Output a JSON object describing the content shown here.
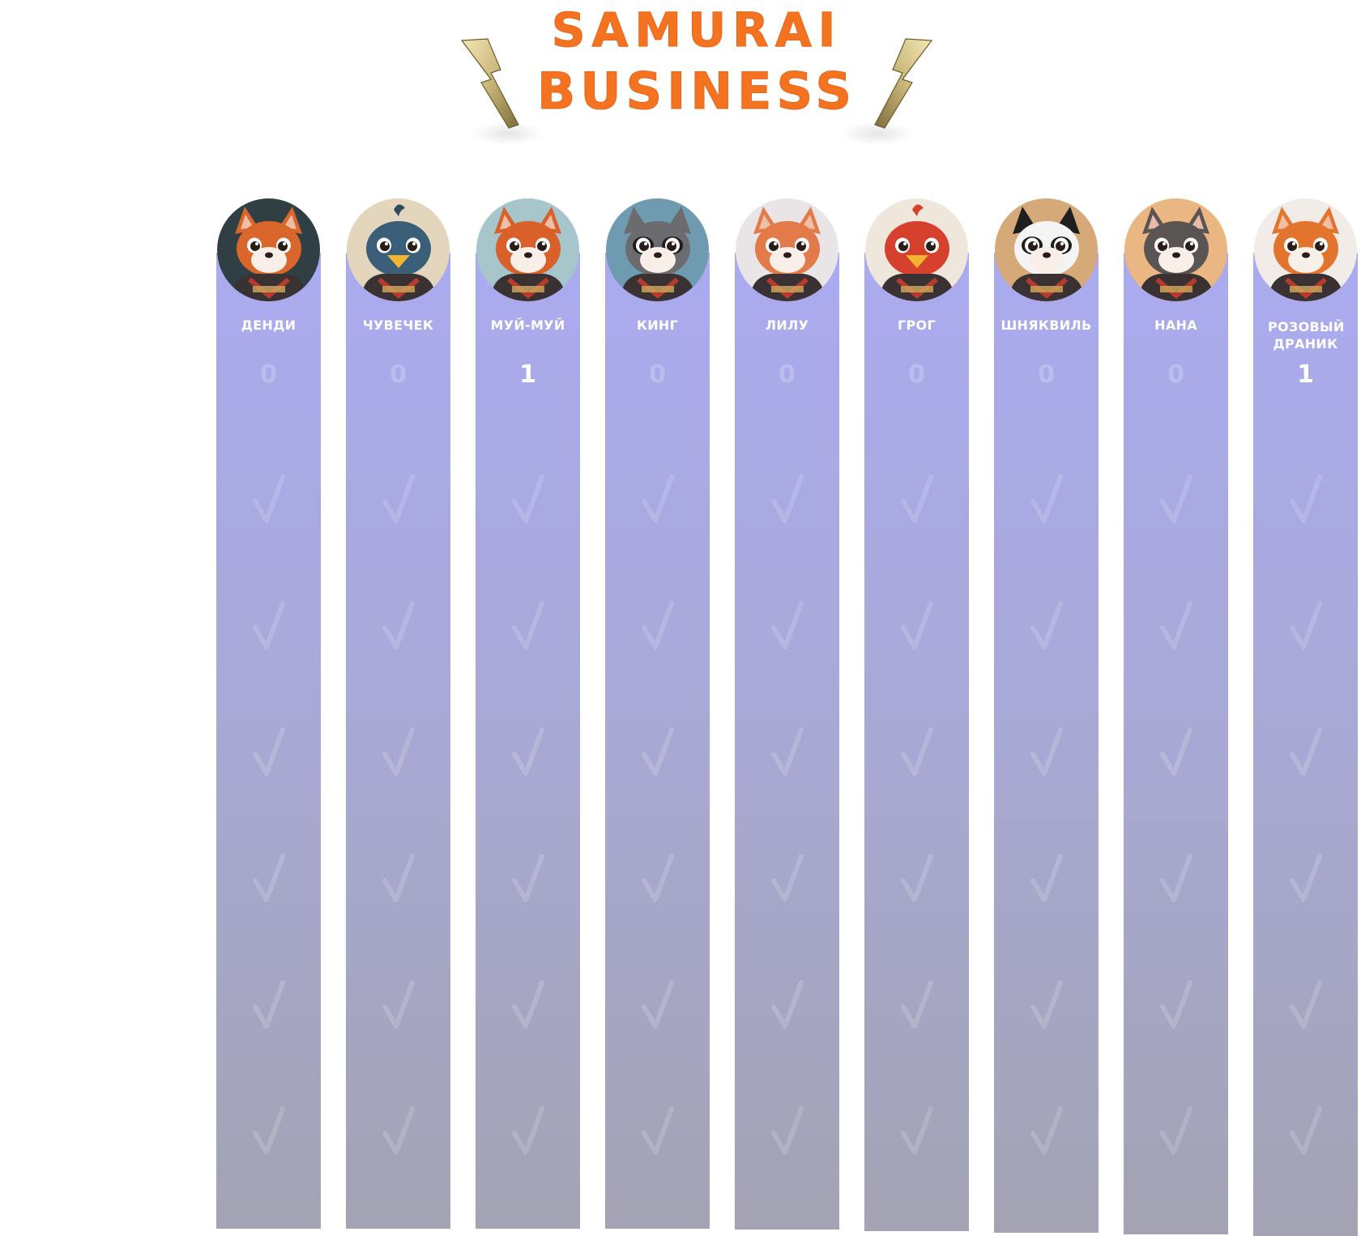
{
  "logo": {
    "line1": "Samurai",
    "line2": "Business",
    "text_color": "#f47320",
    "bolt_color": "#c9b679"
  },
  "board": {
    "bar_gradient": [
      "#aaaaf0",
      "#a3a3b3"
    ],
    "columns": [
      {
        "name": "ДЕНДИ",
        "count": "0",
        "avatar": "fox-samurai",
        "avatar_bg": "#2f3f44",
        "fur": "#d9662b"
      },
      {
        "name": "ЧУВЕЧЕК",
        "count": "0",
        "avatar": "penguin-samurai",
        "avatar_bg": "#e4d6bd",
        "fur": "#3b5f78"
      },
      {
        "name": "МУЙ-МУЙ",
        "count": "1",
        "avatar": "red-panda-samurai",
        "avatar_bg": "#a7c6cc",
        "fur": "#d9602b"
      },
      {
        "name": "КИНГ",
        "count": "0",
        "avatar": "raccoon-samurai",
        "avatar_bg": "#6f9bb0",
        "fur": "#6b6b70"
      },
      {
        "name": "ЛИЛУ",
        "count": "0",
        "avatar": "cat-samurai",
        "avatar_bg": "#e9e4e6",
        "fur": "#e27a4a"
      },
      {
        "name": "ГРОГ",
        "count": "0",
        "avatar": "bird-samurai",
        "avatar_bg": "#efe7dc",
        "fur": "#d6412d"
      },
      {
        "name": "ШНЯКВИЛЬ",
        "count": "0",
        "avatar": "panda-samurai",
        "avatar_bg": "#d5a978",
        "fur": "#f2f2f2"
      },
      {
        "name": "НАНА",
        "count": "0",
        "avatar": "fennec-samurai",
        "avatar_bg": "#eab783",
        "fur": "#5a5452"
      },
      {
        "name": "РОЗОВЫЙ ДРАНИК",
        "count": "1",
        "avatar": "fox-kid-samurai",
        "avatar_bg": "#f1ece8",
        "fur": "#e2742e"
      }
    ],
    "check_icon": "check-mark-icon"
  }
}
